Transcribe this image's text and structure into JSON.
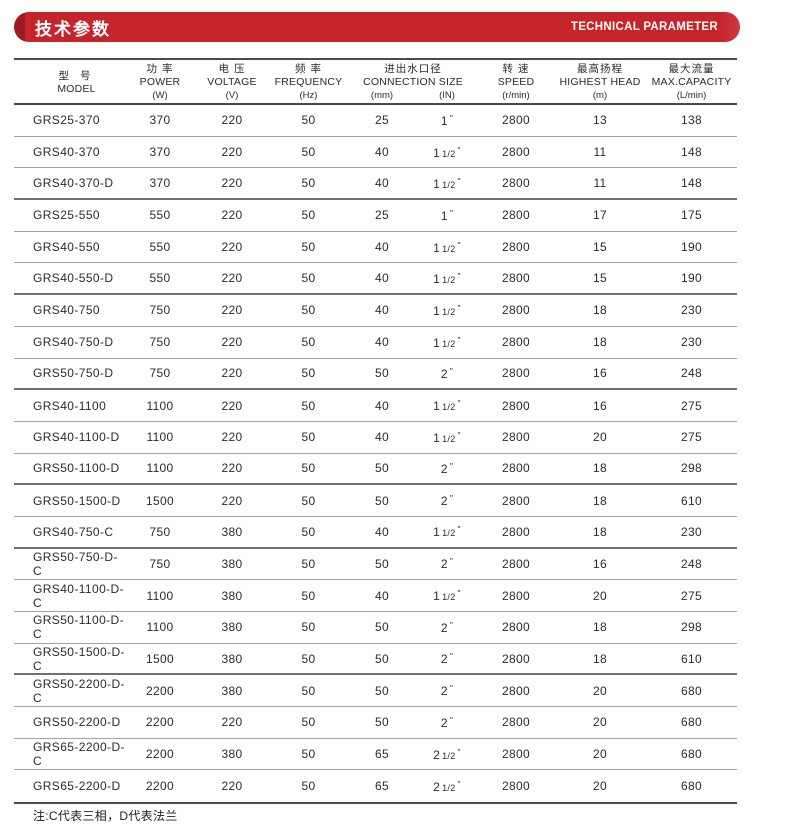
{
  "accent_color": "#c5242a",
  "accent_dark_color": "#9d1b20",
  "header": {
    "title_zh": "技术参数",
    "title_en": "TECHNICAL PARAMETER"
  },
  "table": {
    "columns": {
      "model": {
        "zh": "型 号",
        "en": "MODEL"
      },
      "power": {
        "zh": "功 率",
        "en": "POWER",
        "unit": "(W)"
      },
      "voltage": {
        "zh": "电 压",
        "en": "VOLTAGE",
        "unit": "(V)"
      },
      "frequency": {
        "zh": "频 率",
        "en": "FREQUENCY",
        "unit": "(Hz)"
      },
      "connection": {
        "zh": "进出水口径",
        "en": "CONNECTION SIZE",
        "unit_mm": "(mm)",
        "unit_in": "(IN)"
      },
      "speed": {
        "zh": "转 速",
        "en": "SPEED",
        "unit": "(r/min)"
      },
      "head": {
        "zh": "最高扬程",
        "en": "HIGHEST HEAD",
        "unit": "(m)"
      },
      "capacity": {
        "zh": "最大流量",
        "en": "MAX.CAPACITY",
        "unit": "(L/min)"
      }
    },
    "rows": [
      {
        "model": "GRS25-370",
        "power": "370",
        "voltage": "220",
        "frequency": "50",
        "mm": "25",
        "in_whole": "1",
        "in_frac": "",
        "speed": "2800",
        "head": "13",
        "capacity": "138",
        "group_end": false
      },
      {
        "model": "GRS40-370",
        "power": "370",
        "voltage": "220",
        "frequency": "50",
        "mm": "40",
        "in_whole": "1",
        "in_frac": "1/2",
        "speed": "2800",
        "head": "11",
        "capacity": "148",
        "group_end": false
      },
      {
        "model": "GRS40-370-D",
        "power": "370",
        "voltage": "220",
        "frequency": "50",
        "mm": "40",
        "in_whole": "1",
        "in_frac": "1/2",
        "speed": "2800",
        "head": "11",
        "capacity": "148",
        "group_end": true
      },
      {
        "model": "GRS25-550",
        "power": "550",
        "voltage": "220",
        "frequency": "50",
        "mm": "25",
        "in_whole": "1",
        "in_frac": "",
        "speed": "2800",
        "head": "17",
        "capacity": "175",
        "group_end": false
      },
      {
        "model": "GRS40-550",
        "power": "550",
        "voltage": "220",
        "frequency": "50",
        "mm": "40",
        "in_whole": "1",
        "in_frac": "1/2",
        "speed": "2800",
        "head": "15",
        "capacity": "190",
        "group_end": false
      },
      {
        "model": "GRS40-550-D",
        "power": "550",
        "voltage": "220",
        "frequency": "50",
        "mm": "40",
        "in_whole": "1",
        "in_frac": "1/2",
        "speed": "2800",
        "head": "15",
        "capacity": "190",
        "group_end": true
      },
      {
        "model": "GRS40-750",
        "power": "750",
        "voltage": "220",
        "frequency": "50",
        "mm": "40",
        "in_whole": "1",
        "in_frac": "1/2",
        "speed": "2800",
        "head": "18",
        "capacity": "230",
        "group_end": false
      },
      {
        "model": "GRS40-750-D",
        "power": "750",
        "voltage": "220",
        "frequency": "50",
        "mm": "40",
        "in_whole": "1",
        "in_frac": "1/2",
        "speed": "2800",
        "head": "18",
        "capacity": "230",
        "group_end": false
      },
      {
        "model": "GRS50-750-D",
        "power": "750",
        "voltage": "220",
        "frequency": "50",
        "mm": "50",
        "in_whole": "2",
        "in_frac": "",
        "speed": "2800",
        "head": "16",
        "capacity": "248",
        "group_end": true
      },
      {
        "model": "GRS40-1100",
        "power": "1100",
        "voltage": "220",
        "frequency": "50",
        "mm": "40",
        "in_whole": "1",
        "in_frac": "1/2",
        "speed": "2800",
        "head": "16",
        "capacity": "275",
        "group_end": false
      },
      {
        "model": "GRS40-1100-D",
        "power": "1100",
        "voltage": "220",
        "frequency": "50",
        "mm": "40",
        "in_whole": "1",
        "in_frac": "1/2",
        "speed": "2800",
        "head": "20",
        "capacity": "275",
        "group_end": false
      },
      {
        "model": "GRS50-1100-D",
        "power": "1100",
        "voltage": "220",
        "frequency": "50",
        "mm": "50",
        "in_whole": "2",
        "in_frac": "",
        "speed": "2800",
        "head": "18",
        "capacity": "298",
        "group_end": true
      },
      {
        "model": "GRS50-1500-D",
        "power": "1500",
        "voltage": "220",
        "frequency": "50",
        "mm": "50",
        "in_whole": "2",
        "in_frac": "",
        "speed": "2800",
        "head": "18",
        "capacity": "610",
        "group_end": false
      },
      {
        "model": "GRS40-750-C",
        "power": "750",
        "voltage": "380",
        "frequency": "50",
        "mm": "40",
        "in_whole": "1",
        "in_frac": "1/2",
        "speed": "2800",
        "head": "18",
        "capacity": "230",
        "group_end": true
      },
      {
        "model": "GRS50-750-D-C",
        "power": "750",
        "voltage": "380",
        "frequency": "50",
        "mm": "50",
        "in_whole": "2",
        "in_frac": "",
        "speed": "2800",
        "head": "16",
        "capacity": "248",
        "group_end": false
      },
      {
        "model": "GRS40-1100-D-C",
        "power": "1100",
        "voltage": "380",
        "frequency": "50",
        "mm": "40",
        "in_whole": "1",
        "in_frac": "1/2",
        "speed": "2800",
        "head": "20",
        "capacity": "275",
        "group_end": false
      },
      {
        "model": "GRS50-1100-D-C",
        "power": "1100",
        "voltage": "380",
        "frequency": "50",
        "mm": "50",
        "in_whole": "2",
        "in_frac": "",
        "speed": "2800",
        "head": "18",
        "capacity": "298",
        "group_end": false
      },
      {
        "model": "GRS50-1500-D-C",
        "power": "1500",
        "voltage": "380",
        "frequency": "50",
        "mm": "50",
        "in_whole": "2",
        "in_frac": "",
        "speed": "2800",
        "head": "18",
        "capacity": "610",
        "group_end": true
      },
      {
        "model": "GRS50-2200-D-C",
        "power": "2200",
        "voltage": "380",
        "frequency": "50",
        "mm": "50",
        "in_whole": "2",
        "in_frac": "",
        "speed": "2800",
        "head": "20",
        "capacity": "680",
        "group_end": false
      },
      {
        "model": "GRS50-2200-D",
        "power": "2200",
        "voltage": "220",
        "frequency": "50",
        "mm": "50",
        "in_whole": "2",
        "in_frac": "",
        "speed": "2800",
        "head": "20",
        "capacity": "680",
        "group_end": false
      },
      {
        "model": "GRS65-2200-D-C",
        "power": "2200",
        "voltage": "380",
        "frequency": "50",
        "mm": "65",
        "in_whole": "2",
        "in_frac": "1/2",
        "speed": "2800",
        "head": "20",
        "capacity": "680",
        "group_end": false
      },
      {
        "model": "GRS65-2200-D",
        "power": "2200",
        "voltage": "220",
        "frequency": "50",
        "mm": "65",
        "in_whole": "2",
        "in_frac": "1/2",
        "speed": "2800",
        "head": "20",
        "capacity": "680",
        "group_end": false
      }
    ]
  },
  "footnote": "注:C代表三相，D代表法兰",
  "inch_mark": "\""
}
